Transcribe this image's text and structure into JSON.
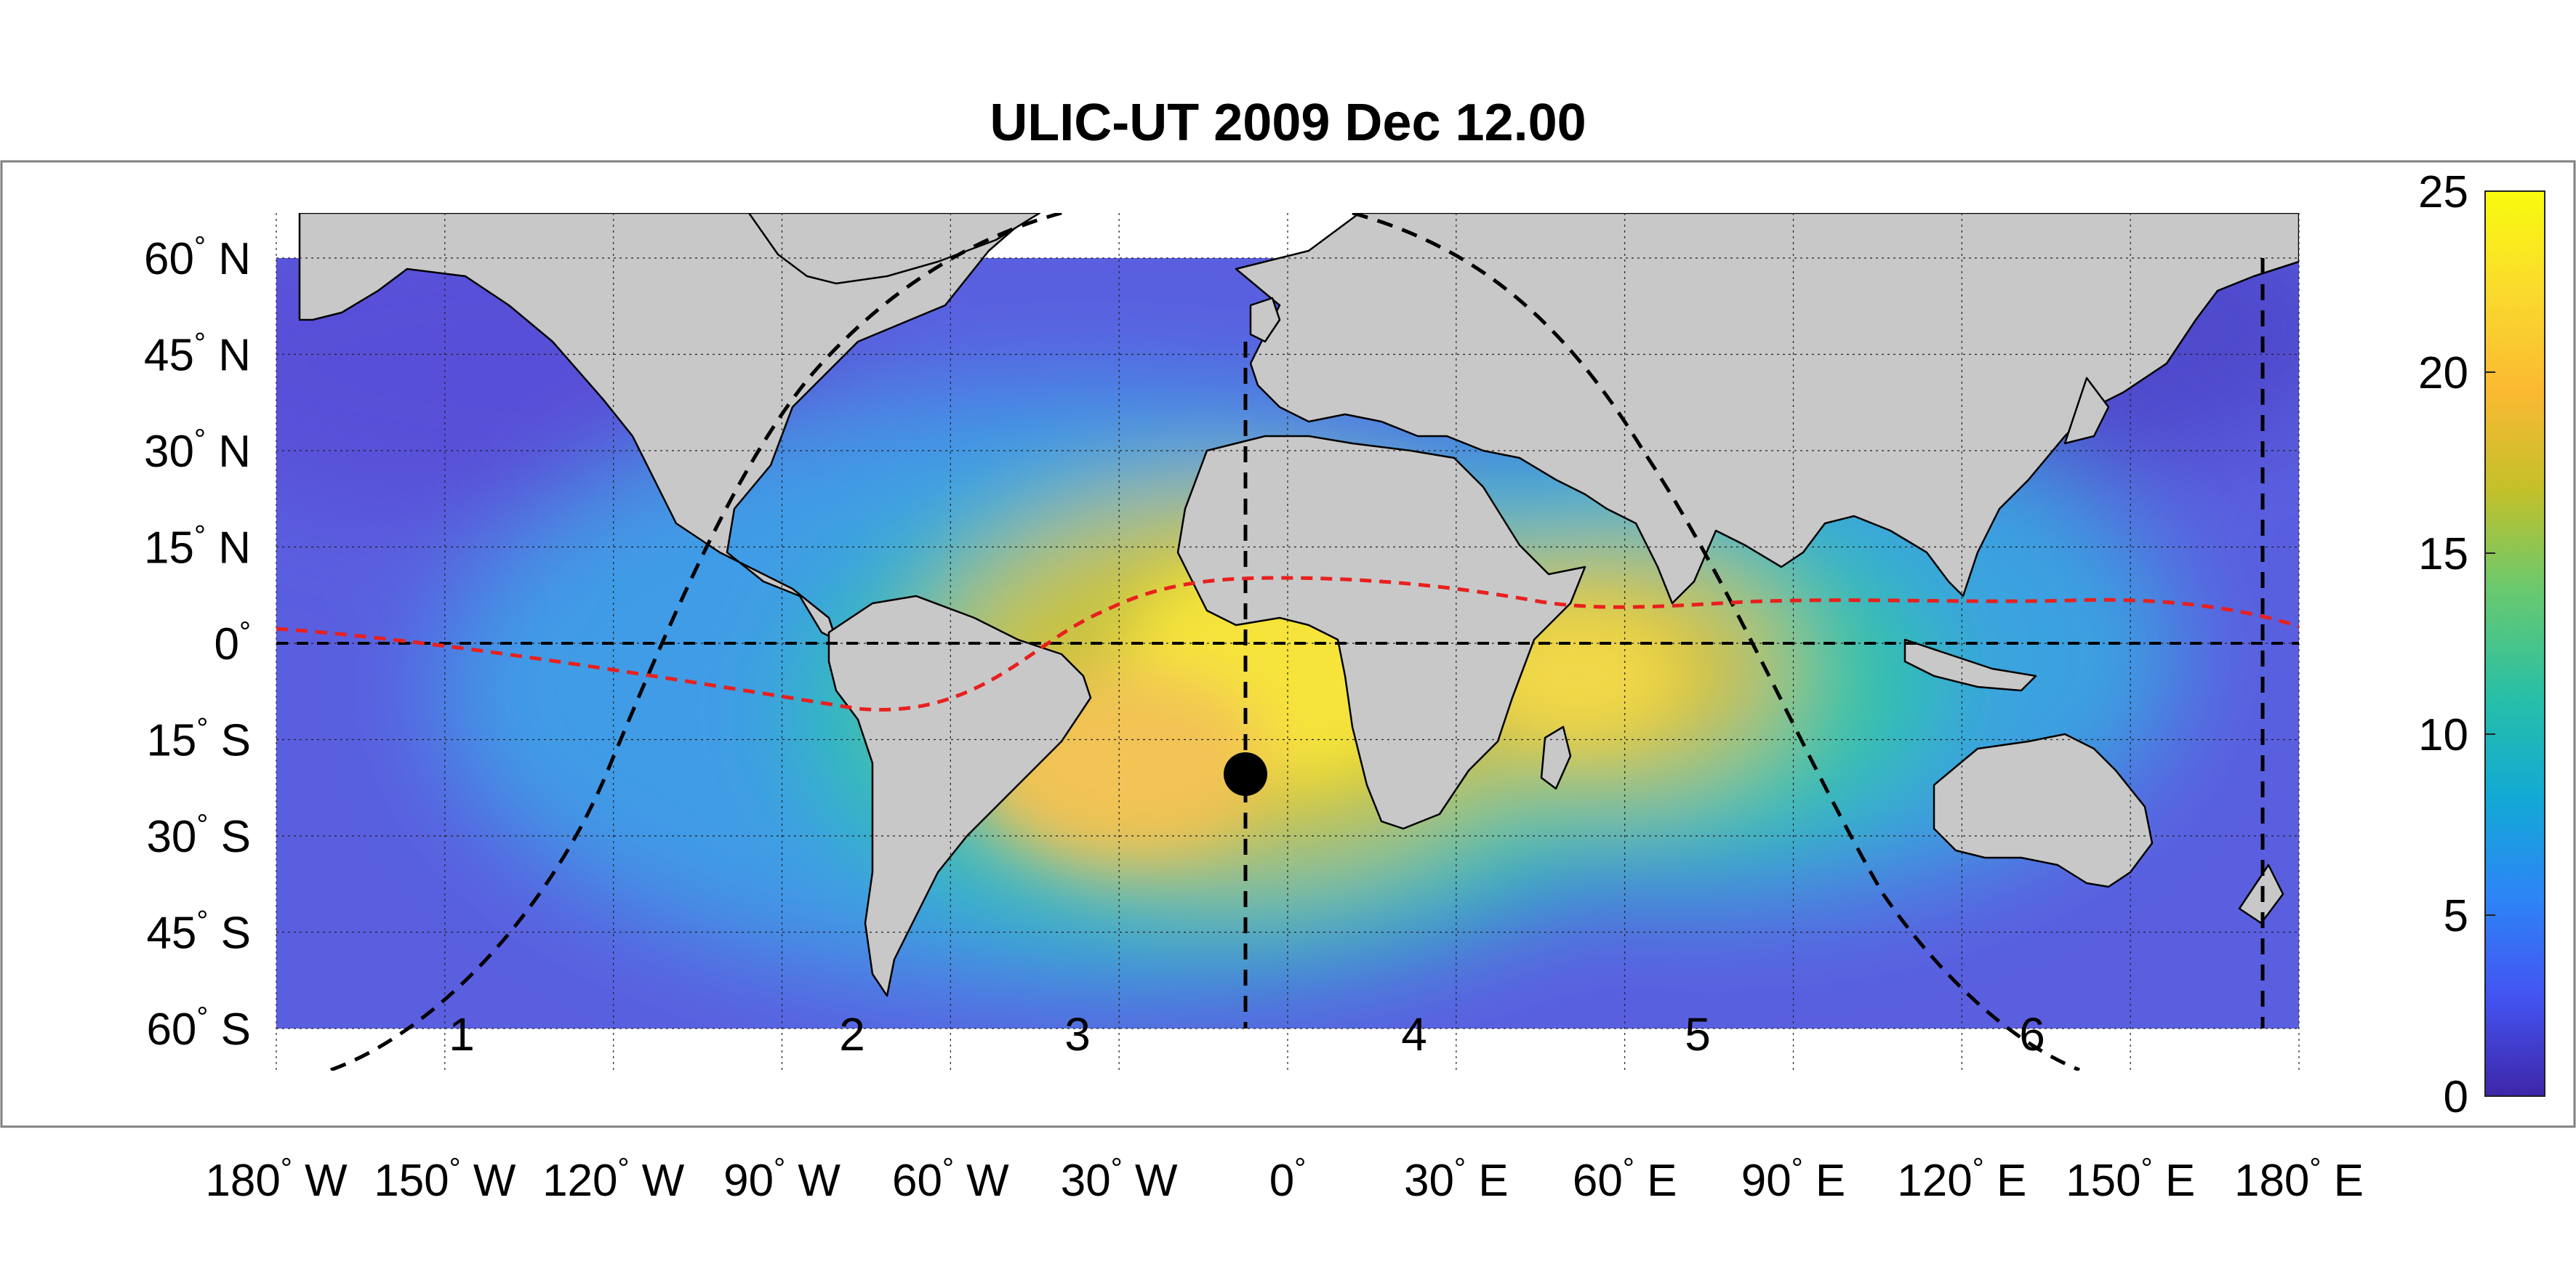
{
  "title": "ULIC-UT 2009 Dec 12.00",
  "map": {
    "lon_range": [
      -180,
      180
    ],
    "lat_range": [
      -60,
      60
    ],
    "grid": true,
    "gridline_step_degrees": 30,
    "lat_gridline_step_degrees": 15,
    "land_color": "#c8c8c8",
    "coastline_color": "#000000"
  },
  "axes": {
    "y_ticks": [
      {
        "value": "60",
        "deg": "°",
        "hemi": "N"
      },
      {
        "value": "45",
        "deg": "°",
        "hemi": "N"
      },
      {
        "value": "30",
        "deg": "°",
        "hemi": "N"
      },
      {
        "value": "15",
        "deg": "°",
        "hemi": "N"
      },
      {
        "value": "0",
        "deg": "°",
        "hemi": ""
      },
      {
        "value": "15",
        "deg": "°",
        "hemi": "S"
      },
      {
        "value": "30",
        "deg": "°",
        "hemi": "S"
      },
      {
        "value": "45",
        "deg": "°",
        "hemi": "S"
      },
      {
        "value": "60",
        "deg": "°",
        "hemi": "S"
      }
    ],
    "x_ticks": [
      {
        "value": "180",
        "deg": "°",
        "hemi": "W"
      },
      {
        "value": "150",
        "deg": "°",
        "hemi": "W"
      },
      {
        "value": "120",
        "deg": "°",
        "hemi": "W"
      },
      {
        "value": "90",
        "deg": "°",
        "hemi": "W"
      },
      {
        "value": "60",
        "deg": "°",
        "hemi": "W"
      },
      {
        "value": "30",
        "deg": "°",
        "hemi": "W"
      },
      {
        "value": "0",
        "deg": "°",
        "hemi": ""
      },
      {
        "value": "30",
        "deg": "°",
        "hemi": "E"
      },
      {
        "value": "60",
        "deg": "°",
        "hemi": "E"
      },
      {
        "value": "90",
        "deg": "°",
        "hemi": "E"
      },
      {
        "value": "120",
        "deg": "°",
        "hemi": "E"
      },
      {
        "value": "150",
        "deg": "°",
        "hemi": "E"
      },
      {
        "value": "180",
        "deg": "°",
        "hemi": "E"
      }
    ]
  },
  "colorbar": {
    "min": 0,
    "max": 25,
    "ticks": [
      "0",
      "5",
      "10",
      "15",
      "20",
      "25"
    ],
    "colors": [
      "#3e26a8",
      "#4354f2",
      "#2d85f6",
      "#12a9d5",
      "#27bfa7",
      "#6ac96e",
      "#c4c02a",
      "#fbb932",
      "#fadb2d",
      "#f9fb0e"
    ]
  },
  "overlays": {
    "equator_line_color": "#000000",
    "terminator_color": "#000000",
    "magnetic_equator_color": "#e8201e",
    "subsolar_point": {
      "lon": -10,
      "lat": -23
    },
    "sector_labels": [
      "1",
      "2",
      "3",
      "4",
      "5",
      "6"
    ]
  }
}
